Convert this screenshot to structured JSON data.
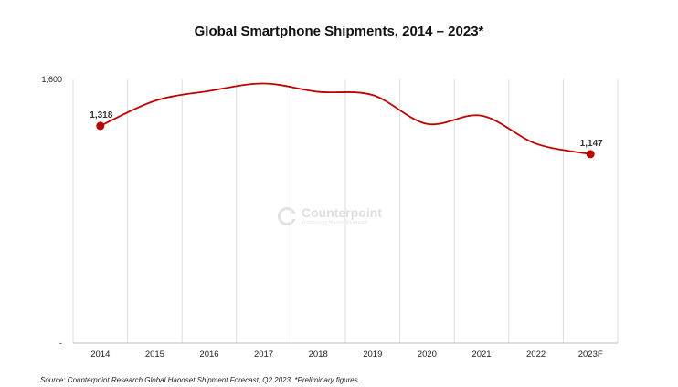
{
  "chart_data": {
    "type": "line",
    "title": "Global Smartphone Shipments, 2014 – 2023*",
    "categories": [
      "2014",
      "2015",
      "2016",
      "2017",
      "2018",
      "2019",
      "2020",
      "2021",
      "2022",
      "2023F"
    ],
    "series": [
      {
        "name": "Global Smartphone Shipments",
        "values": [
          1318,
          1470,
          1530,
          1575,
          1525,
          1505,
          1330,
          1380,
          1210,
          1147
        ],
        "color": "#c00000"
      }
    ],
    "data_labels": [
      {
        "category": "2014",
        "text": "1,318"
      },
      {
        "category": "2023F",
        "text": "1,147"
      }
    ],
    "y_tick_labels": [
      {
        "value": 1600,
        "text": "1,600"
      },
      {
        "value": 0,
        "text": "-"
      }
    ],
    "ylim": [
      0,
      1600
    ],
    "xlabel": "",
    "ylabel": "",
    "grid": "vertical",
    "gridline_color": "#dddddd",
    "axis_color": "#bbbbbb",
    "source": "Source:  Counterpoint Research Global Handset Shipment Forecast, Q2 2023. *Preliminary figures."
  },
  "watermark": {
    "name": "Counterpoint",
    "tagline": "Technology Market Research"
  }
}
